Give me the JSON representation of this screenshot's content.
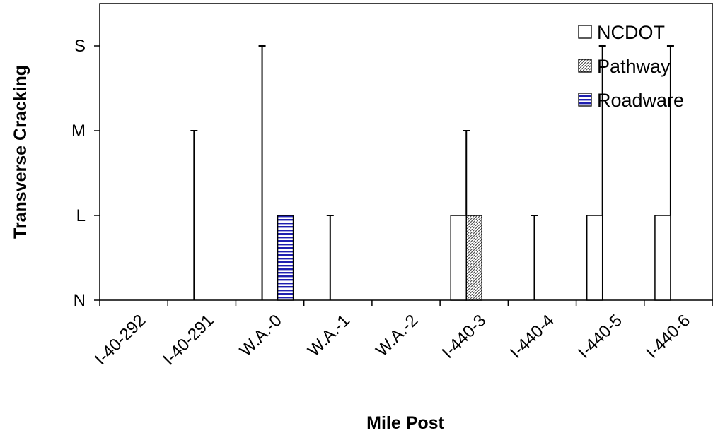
{
  "chart_data": {
    "type": "bar",
    "xlabel": "Mile Post",
    "ylabel": "Transverse Cracking",
    "categories": [
      "I-40-292",
      "I-40-291",
      "W.A.-0",
      "W.A.-1",
      "W.A.-2",
      "I-440-3",
      "I-440-4",
      "I-440-5",
      "I-440-6"
    ],
    "y_levels": [
      "N",
      "L",
      "M",
      "S"
    ],
    "ylim": [
      0,
      3
    ],
    "grid": false,
    "legend_position": "top-right",
    "series": [
      {
        "name": "NCDOT",
        "pattern": "empty",
        "color": "#ffffff",
        "values": [
          0,
          0,
          0,
          0,
          0,
          1,
          0,
          1,
          1
        ],
        "error_upper": [
          0,
          2,
          3,
          1,
          0,
          1,
          1,
          2,
          2
        ]
      },
      {
        "name": "Pathway",
        "pattern": "diagonal-hatch",
        "color": "#808080",
        "values": [
          0,
          0,
          0,
          0,
          0,
          1,
          0,
          0,
          0
        ],
        "error_upper": [
          0,
          0,
          0,
          0,
          0,
          0,
          0,
          0,
          0
        ]
      },
      {
        "name": "Roadware",
        "pattern": "horizontal-stripes",
        "color": "#1f1fb0",
        "values": [
          0,
          0,
          1,
          0,
          0,
          0,
          0,
          0,
          0
        ],
        "error_upper": [
          0,
          0,
          0,
          0,
          0,
          0,
          0,
          0,
          0
        ]
      }
    ]
  }
}
